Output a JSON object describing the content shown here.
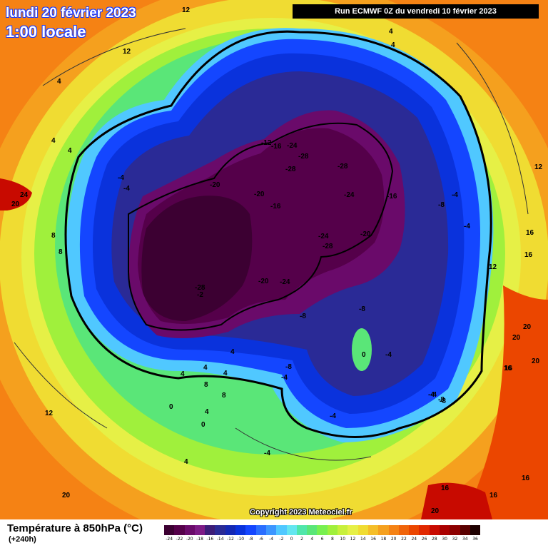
{
  "header": {
    "date_line": "lundi 20 février 2023",
    "time_line": "1:00 locale",
    "run_info": "Run ECMWF 0Z du vendredi 10 février 2023"
  },
  "map": {
    "copyright": "Copyright 2023 Meteociel.fr",
    "isotherm_labels": [
      "12",
      "4",
      "4",
      "12",
      "4",
      "4",
      "4",
      "-4",
      "-4",
      "24",
      "20",
      "8",
      "8",
      "-12",
      "-16",
      "-24",
      "-28",
      "-28",
      "-28",
      "-24",
      "-16",
      "-4",
      "-8",
      "-4",
      "-20",
      "-20",
      "-16",
      "-24",
      "-28",
      "-20",
      "-20",
      "-24",
      "-28",
      "-2",
      "-8",
      "-8",
      "-8",
      "-8",
      "-4",
      "-4",
      "-4",
      "-4",
      "-4",
      "0",
      "0",
      "0",
      "4",
      "4",
      "4",
      "4",
      "4",
      "8",
      "8",
      "12",
      "4",
      "20",
      "12",
      "16",
      "12",
      "16",
      "20",
      "20",
      "20",
      "16",
      "16",
      "16",
      "20",
      "-4",
      "-8",
      "16",
      "16"
    ]
  },
  "legend": {
    "title": "Température à 850hPa (°C)",
    "subtitle": "(+240h)",
    "scale_labels": [
      "-24",
      "-22",
      "-20",
      "-18",
      "-16",
      "-14",
      "-12",
      "-10",
      "-8",
      "-6",
      "-4",
      "-2",
      "0",
      "2",
      "4",
      "6",
      "8",
      "10",
      "12",
      "14",
      "16",
      "18",
      "20",
      "22",
      "24",
      "26",
      "28",
      "30",
      "32",
      "34",
      "36"
    ],
    "scale_colors": [
      "#3c0032",
      "#55004a",
      "#6a0a6a",
      "#7d1a86",
      "#3c1c78",
      "#2a2a96",
      "#1428b4",
      "#0a32dc",
      "#1446ff",
      "#2a6eff",
      "#3c96ff",
      "#50c8ff",
      "#64e6f0",
      "#50e6aa",
      "#5ae678",
      "#78f050",
      "#a0f03c",
      "#c8f03c",
      "#e6f046",
      "#f0dc32",
      "#f5be28",
      "#f5a01e",
      "#f58214",
      "#f0640a",
      "#eb4600",
      "#e12800",
      "#c80a00",
      "#aa0000",
      "#8c0000",
      "#5a0000",
      "#1e0000"
    ]
  }
}
